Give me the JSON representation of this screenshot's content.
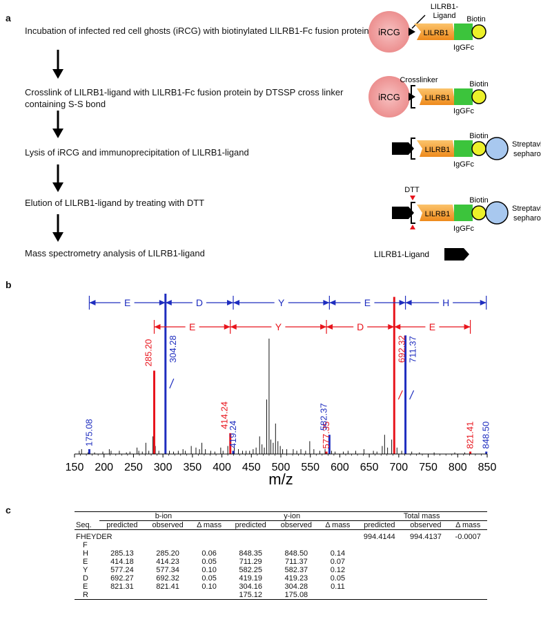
{
  "panels": {
    "a": "a",
    "b": "b",
    "c": "c"
  },
  "workflow": {
    "steps": [
      "Incubation of infected red cell ghosts (iRCG) with biotinylated LILRB1-Fc fusion protein",
      "Crosslink of LILRB1-ligand with LILRB1-Fc fusion protein by DTSSP cross linker containing S-S bond",
      "Lysis of iRCG and immunoprecipitation of LILRB1-ligand",
      "Elution of LILRB1-ligand by treating with DTT",
      "Mass spectrometry analysis of LILRB1-ligand"
    ]
  },
  "schematic": {
    "irgc": "iRCG",
    "lilrb1": "LILRB1",
    "igg": "IgGFc",
    "biotin": "Biotin",
    "ligand_label": "LILRB1-\nLigand",
    "crosslinker": "Crosslinker",
    "streptavidin": "Streptavidin\nsepharose",
    "dtt": "DTT",
    "legend": "LILRB1-Ligand",
    "colors": {
      "irgc": "#f2a0a0",
      "lilrb1": "#f7a23a",
      "igg": "#3cc43c",
      "biotin": "#ecf02a",
      "strep": "#a8c8ef"
    }
  },
  "chart_data": {
    "type": "bar",
    "xlabel": "m/z",
    "xlim": [
      150,
      850
    ],
    "xticks": [
      150,
      200,
      250,
      300,
      350,
      400,
      450,
      500,
      550,
      600,
      650,
      700,
      750,
      800,
      850
    ],
    "ylim": [
      0,
      100
    ],
    "colors": {
      "b": "#e8141c",
      "y": "#1e2dbf",
      "other": "#111111"
    },
    "b_ions": [
      {
        "x": 285.2,
        "y": 52,
        "label": "285.20"
      },
      {
        "x": 414.24,
        "y": 13,
        "label": "414.24"
      },
      {
        "x": 577.35,
        "y": 1.5,
        "label": "577.35"
      },
      {
        "x": 692.32,
        "y": 98,
        "label": "692.32"
      },
      {
        "x": 821.41,
        "y": 1.5,
        "label": "821.41"
      }
    ],
    "y_ions": [
      {
        "x": 175.08,
        "y": 3,
        "label": "175.08"
      },
      {
        "x": 304.28,
        "y": 100,
        "label": "304.28"
      },
      {
        "x": 419.24,
        "y": 2,
        "label": "419.24"
      },
      {
        "x": 582.37,
        "y": 12,
        "label": "582.37"
      },
      {
        "x": 711.37,
        "y": 74,
        "label": "711.37"
      },
      {
        "x": 848.5,
        "y": 1.5,
        "label": "848.50"
      }
    ],
    "other_peaks": [
      [
        158,
        2
      ],
      [
        162,
        3
      ],
      [
        173,
        1
      ],
      [
        184,
        1
      ],
      [
        198,
        1.5
      ],
      [
        209,
        3
      ],
      [
        212,
        2
      ],
      [
        226,
        2
      ],
      [
        238,
        1
      ],
      [
        244,
        1.5
      ],
      [
        256,
        4
      ],
      [
        259,
        2
      ],
      [
        265,
        1.5
      ],
      [
        271,
        7
      ],
      [
        276,
        2
      ],
      [
        283,
        11
      ],
      [
        287,
        5
      ],
      [
        293,
        2
      ],
      [
        311,
        2
      ],
      [
        318,
        1.5
      ],
      [
        326,
        2
      ],
      [
        334,
        3
      ],
      [
        338,
        2
      ],
      [
        348,
        5
      ],
      [
        356,
        4
      ],
      [
        362,
        3
      ],
      [
        366,
        7
      ],
      [
        372,
        3
      ],
      [
        381,
        2
      ],
      [
        388,
        1.5
      ],
      [
        398,
        4
      ],
      [
        402,
        2
      ],
      [
        410,
        5
      ],
      [
        421,
        6
      ],
      [
        428,
        3
      ],
      [
        435,
        2
      ],
      [
        441,
        2
      ],
      [
        447,
        2
      ],
      [
        453,
        3
      ],
      [
        458,
        4
      ],
      [
        464,
        11
      ],
      [
        468,
        6
      ],
      [
        472,
        4
      ],
      [
        476,
        34
      ],
      [
        480,
        72
      ],
      [
        483,
        9
      ],
      [
        487,
        7
      ],
      [
        491,
        19
      ],
      [
        495,
        8
      ],
      [
        499,
        5
      ],
      [
        503,
        3
      ],
      [
        510,
        3
      ],
      [
        521,
        3
      ],
      [
        527,
        2
      ],
      [
        534,
        3
      ],
      [
        542,
        2
      ],
      [
        549,
        8
      ],
      [
        556,
        3
      ],
      [
        566,
        2
      ],
      [
        575,
        3
      ],
      [
        586,
        2
      ],
      [
        592,
        1.5
      ],
      [
        606,
        1.5
      ],
      [
        614,
        2
      ],
      [
        627,
        2
      ],
      [
        641,
        3
      ],
      [
        657,
        2
      ],
      [
        663,
        1.5
      ],
      [
        672,
        5
      ],
      [
        676,
        12
      ],
      [
        681,
        4
      ],
      [
        688,
        9
      ],
      [
        697,
        4
      ],
      [
        705,
        2
      ],
      [
        722,
        1.5
      ],
      [
        735,
        1
      ],
      [
        760,
        1
      ],
      [
        795,
        1
      ],
      [
        812,
        1
      ]
    ],
    "y_series_letters": [
      "E",
      "D",
      "Y",
      "E",
      "H"
    ],
    "b_series_letters": [
      "E",
      "Y",
      "D",
      "E"
    ],
    "y_boundaries": [
      175.08,
      304.28,
      419.24,
      582.37,
      711.37,
      848.5
    ],
    "b_boundaries": [
      156,
      285.2,
      414.24,
      577.35,
      692.32,
      821.41
    ]
  },
  "table": {
    "group_headers": [
      "b-ion",
      "y-ion",
      "Total mass"
    ],
    "col_headers": [
      "Seq.",
      "predicted",
      "observed",
      "Δ mass",
      "predicted",
      "observed",
      "Δ mass",
      "predicted",
      "observed",
      "Δ mass"
    ],
    "sequence_label": "FHEYDER",
    "total": [
      "994.4144",
      "994.4137",
      "-0.0007"
    ],
    "rows": [
      [
        "F",
        "",
        "",
        "",
        "",
        "",
        "",
        "",
        "",
        ""
      ],
      [
        "H",
        "285.13",
        "285.20",
        "0.06",
        "848.35",
        "848.50",
        "0.14",
        "",
        "",
        ""
      ],
      [
        "E",
        "414.18",
        "414.23",
        "0.05",
        "711.29",
        "711.37",
        "0.07",
        "",
        "",
        ""
      ],
      [
        "Y",
        "577.24",
        "577.34",
        "0.10",
        "582.25",
        "582.37",
        "0.12",
        "",
        "",
        ""
      ],
      [
        "D",
        "692.27",
        "692.32",
        "0.05",
        "419.19",
        "419.23",
        "0.05",
        "",
        "",
        ""
      ],
      [
        "E",
        "821.31",
        "821.41",
        "0.10",
        "304.16",
        "304.28",
        "0.11",
        "",
        "",
        ""
      ],
      [
        "R",
        "",
        "",
        "",
        "175.12",
        "175.08",
        "",
        "",
        "",
        ""
      ]
    ]
  }
}
